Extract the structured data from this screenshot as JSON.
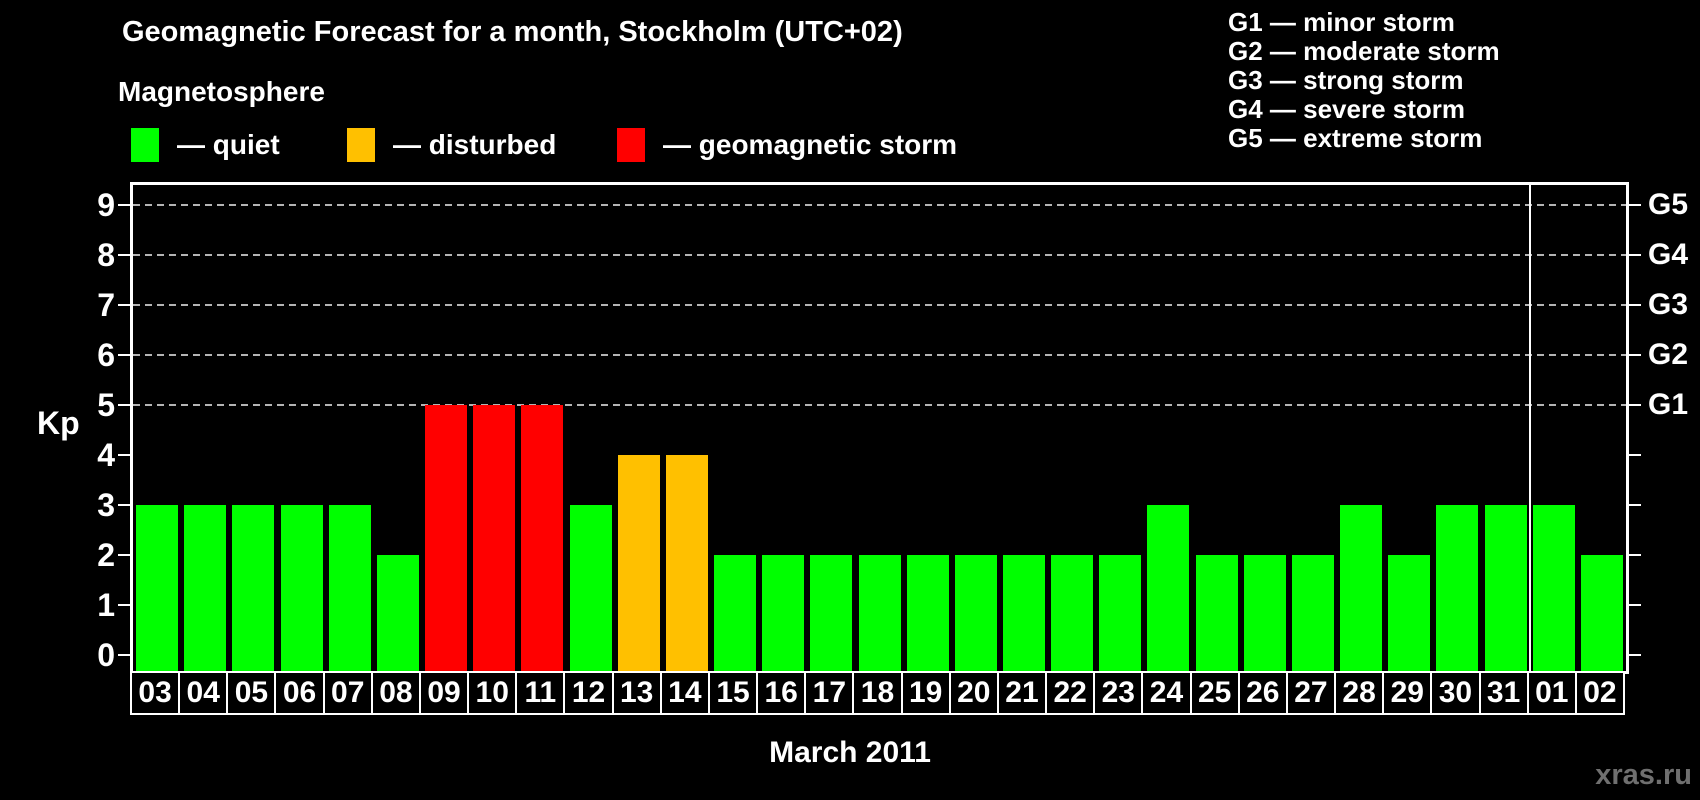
{
  "title": "Geomagnetic Forecast for a month, Stockholm (UTC+02)",
  "subtitle": "Magnetosphere",
  "legend": {
    "items": [
      {
        "status": "quiet",
        "label": "— quiet",
        "color": "#00ff00"
      },
      {
        "status": "disturbed",
        "label": "— disturbed",
        "color": "#ffc000"
      },
      {
        "status": "storm",
        "label": "— geomagnetic storm",
        "color": "#ff0000"
      }
    ]
  },
  "storm_scale": {
    "items": [
      "G1 — minor storm",
      "G2 — moderate storm",
      "G3 — strong storm",
      "G4 — severe storm",
      "G5 — extreme storm"
    ]
  },
  "watermark": "xras.ru",
  "chart_data": {
    "type": "bar",
    "title": "Geomagnetic Forecast for a month, Stockholm (UTC+02)",
    "xlabel": "March 2011",
    "ylabel": "Kp",
    "ylim": [
      0,
      9
    ],
    "yticks": [
      0,
      1,
      2,
      3,
      4,
      5,
      6,
      7,
      8,
      9
    ],
    "grid_values": [
      5,
      6,
      7,
      8,
      9
    ],
    "grid": "dashed-above-5-only",
    "legend_position": "top",
    "right_axis": [
      {
        "value": 5,
        "label": "G1"
      },
      {
        "value": 6,
        "label": "G2"
      },
      {
        "value": 7,
        "label": "G3"
      },
      {
        "value": 8,
        "label": "G4"
      },
      {
        "value": 9,
        "label": "G5"
      }
    ],
    "status_colors": {
      "quiet": "#00ff00",
      "disturbed": "#ffc000",
      "storm": "#ff0000"
    },
    "month_boundary_index": 29,
    "categories": [
      "03",
      "04",
      "05",
      "06",
      "07",
      "08",
      "09",
      "10",
      "11",
      "12",
      "13",
      "14",
      "15",
      "16",
      "17",
      "18",
      "19",
      "20",
      "21",
      "22",
      "23",
      "24",
      "25",
      "26",
      "27",
      "28",
      "29",
      "30",
      "31",
      "01",
      "02"
    ],
    "values": [
      3,
      3,
      3,
      3,
      3,
      2,
      5,
      5,
      5,
      3,
      4,
      4,
      2,
      2,
      2,
      2,
      2,
      2,
      2,
      2,
      2,
      3,
      2,
      2,
      2,
      3,
      2,
      3,
      3,
      3,
      2
    ],
    "statuses": [
      "quiet",
      "quiet",
      "quiet",
      "quiet",
      "quiet",
      "quiet",
      "storm",
      "storm",
      "storm",
      "quiet",
      "disturbed",
      "disturbed",
      "quiet",
      "quiet",
      "quiet",
      "quiet",
      "quiet",
      "quiet",
      "quiet",
      "quiet",
      "quiet",
      "quiet",
      "quiet",
      "quiet",
      "quiet",
      "quiet",
      "quiet",
      "quiet",
      "quiet",
      "quiet",
      "quiet"
    ]
  }
}
